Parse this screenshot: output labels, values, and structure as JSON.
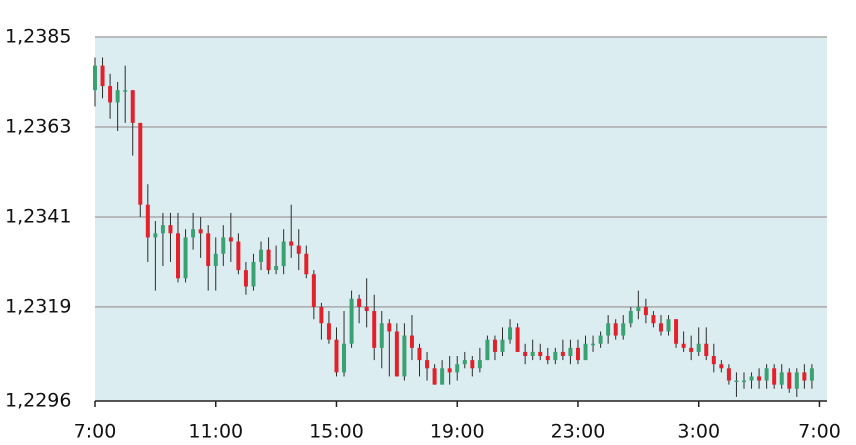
{
  "chart_data": {
    "type": "candlestick",
    "x": [
      7,
      7.25,
      7.5,
      7.75,
      8,
      8.25,
      8.5,
      8.75,
      9,
      9.25,
      9.5,
      9.75,
      10,
      10.25,
      10.5,
      10.75,
      11,
      11.25,
      11.5,
      11.75,
      12,
      12.25,
      12.5,
      12.75,
      13,
      13.25,
      13.5,
      13.75,
      14,
      14.25,
      14.5,
      14.75,
      15,
      15.25,
      15.5,
      15.75,
      16,
      16.25,
      16.5,
      16.75,
      17,
      17.25,
      17.5,
      17.75,
      18,
      18.25,
      18.5,
      18.75,
      19,
      19.25,
      19.5,
      19.75,
      20,
      20.25,
      20.5,
      20.75,
      21,
      21.25,
      21.5,
      21.75,
      22,
      22.25,
      22.5,
      22.75,
      23,
      23.25,
      23.5,
      23.75,
      24,
      24.25,
      24.5,
      24.75,
      25,
      25.25,
      25.5,
      25.75,
      26,
      26.25,
      26.5,
      26.75,
      27,
      27.25,
      27.5,
      27.75,
      28,
      28.25,
      28.5,
      28.75,
      29,
      29.25,
      29.5,
      29.75,
      30,
      30.25,
      30.5,
      30.75
    ],
    "open": [
      1.2372,
      1.2378,
      1.2373,
      1.2369,
      1.2372,
      1.2372,
      1.2364,
      1.2344,
      1.2336,
      1.2337,
      1.2339,
      1.2337,
      1.2326,
      1.2336,
      1.2338,
      1.2337,
      1.2329,
      1.2332,
      1.2336,
      1.2335,
      1.2328,
      1.2324,
      1.233,
      1.2333,
      1.2328,
      1.2329,
      1.2335,
      1.2334,
      1.2332,
      1.2327,
      1.2319,
      1.2315,
      1.2311,
      1.2303,
      1.231,
      1.2321,
      1.2319,
      1.2318,
      1.2309,
      1.2315,
      1.2313,
      1.2302,
      1.2312,
      1.2309,
      1.2306,
      1.2304,
      1.23,
      1.2304,
      1.2303,
      1.2305,
      1.2306,
      1.2304,
      1.2306,
      1.2311,
      1.2308,
      1.2311,
      1.2314,
      1.2308,
      1.2307,
      1.2308,
      1.2307,
      1.2306,
      1.2308,
      1.2307,
      1.2309,
      1.2306,
      1.231,
      1.231,
      1.2312,
      1.2315,
      1.2312,
      1.2315,
      1.2318,
      1.2319,
      1.2317,
      1.2315,
      1.2313,
      1.2316,
      1.231,
      1.2309,
      1.2308,
      1.231,
      1.2307,
      1.2305,
      1.2304,
      1.2301,
      1.2301,
      1.2301,
      1.2302,
      1.2301,
      1.2304,
      1.23,
      1.2303,
      1.2299,
      1.2303,
      1.2301
    ],
    "high": [
      1.238,
      1.238,
      1.2376,
      1.2374,
      1.2378,
      1.2372,
      1.2364,
      1.2349,
      1.234,
      1.2342,
      1.2342,
      1.2342,
      1.2338,
      1.2342,
      1.2341,
      1.2339,
      1.2336,
      1.2339,
      1.2342,
      1.2337,
      1.233,
      1.2332,
      1.2335,
      1.2336,
      1.2334,
      1.2338,
      1.2344,
      1.2338,
      1.2334,
      1.2328,
      1.232,
      1.2318,
      1.2314,
      1.2318,
      1.2323,
      1.2322,
      1.2326,
      1.2322,
      1.2318,
      1.2316,
      1.2315,
      1.2315,
      1.2317,
      1.231,
      1.2308,
      1.2305,
      1.2306,
      1.2307,
      1.2307,
      1.2308,
      1.2307,
      1.2309,
      1.2312,
      1.2312,
      1.2314,
      1.2316,
      1.2315,
      1.231,
      1.2311,
      1.231,
      1.2309,
      1.2309,
      1.2311,
      1.2311,
      1.2311,
      1.2312,
      1.2312,
      1.2313,
      1.2317,
      1.2316,
      1.2317,
      1.2319,
      1.2323,
      1.2321,
      1.2318,
      1.2317,
      1.2317,
      1.2316,
      1.2313,
      1.2312,
      1.2314,
      1.2314,
      1.231,
      1.2306,
      1.2305,
      1.2303,
      1.2303,
      1.2303,
      1.2304,
      1.2305,
      1.2305,
      1.2305,
      1.2304,
      1.2304,
      1.2305,
      1.2305
    ],
    "low": [
      1.2368,
      1.237,
      1.2365,
      1.2362,
      1.2364,
      1.2356,
      1.2341,
      1.233,
      1.2323,
      1.2329,
      1.233,
      1.2325,
      1.2325,
      1.2333,
      1.2331,
      1.2323,
      1.2323,
      1.2329,
      1.233,
      1.2327,
      1.2322,
      1.2323,
      1.2328,
      1.2327,
      1.2327,
      1.2327,
      1.2331,
      1.2328,
      1.2326,
      1.2316,
      1.2311,
      1.231,
      1.2302,
      1.2302,
      1.2309,
      1.2315,
      1.2314,
      1.2306,
      1.2304,
      1.2302,
      1.2302,
      1.2301,
      1.2306,
      1.2302,
      1.2301,
      1.23,
      1.23,
      1.23,
      1.2301,
      1.2304,
      1.2302,
      1.2303,
      1.2306,
      1.2306,
      1.2307,
      1.231,
      1.2308,
      1.2305,
      1.2306,
      1.2306,
      1.2305,
      1.2305,
      1.2306,
      1.2305,
      1.2305,
      1.2306,
      1.2308,
      1.2309,
      1.231,
      1.2311,
      1.2311,
      1.2314,
      1.2316,
      1.2315,
      1.2314,
      1.2312,
      1.2312,
      1.2309,
      1.2308,
      1.2306,
      1.2307,
      1.2306,
      1.2303,
      1.2303,
      1.23,
      1.2297,
      1.2299,
      1.2299,
      1.2299,
      1.2299,
      1.2299,
      1.2299,
      1.2298,
      1.2297,
      1.2299,
      1.2299
    ],
    "close": [
      1.2378,
      1.2373,
      1.2369,
      1.2372,
      1.2372,
      1.2364,
      1.2344,
      1.2336,
      1.2337,
      1.2339,
      1.2337,
      1.2326,
      1.2336,
      1.2338,
      1.2337,
      1.2329,
      1.2332,
      1.2336,
      1.2335,
      1.2328,
      1.2324,
      1.233,
      1.2333,
      1.2328,
      1.2329,
      1.2335,
      1.2334,
      1.2332,
      1.2327,
      1.2319,
      1.2315,
      1.2311,
      1.2303,
      1.231,
      1.2321,
      1.2319,
      1.2318,
      1.2309,
      1.2315,
      1.2313,
      1.2302,
      1.2312,
      1.2309,
      1.2306,
      1.2304,
      1.23,
      1.2304,
      1.2303,
      1.2305,
      1.2306,
      1.2304,
      1.2306,
      1.2311,
      1.2308,
      1.2311,
      1.2314,
      1.2308,
      1.2307,
      1.2308,
      1.2307,
      1.2306,
      1.2308,
      1.2307,
      1.2309,
      1.2306,
      1.231,
      1.231,
      1.2312,
      1.2315,
      1.2312,
      1.2315,
      1.2318,
      1.2319,
      1.2317,
      1.2315,
      1.2313,
      1.2316,
      1.231,
      1.2309,
      1.2308,
      1.231,
      1.2307,
      1.2305,
      1.2304,
      1.2301,
      1.2301,
      1.2301,
      1.2302,
      1.2301,
      1.2304,
      1.23,
      1.2303,
      1.2299,
      1.2303,
      1.2301,
      1.2304
    ],
    "up_color": "#3aa272",
    "down_color": "#e3212b",
    "grid": true,
    "xlim": [
      7,
      31.25
    ],
    "xticks": [
      {
        "value": 7,
        "label": "7:00"
      },
      {
        "value": 11,
        "label": "11:00"
      },
      {
        "value": 15,
        "label": "15:00"
      },
      {
        "value": 19,
        "label": "19:00"
      },
      {
        "value": 23,
        "label": "23:00"
      },
      {
        "value": 27,
        "label": "3:00"
      },
      {
        "value": 31,
        "label": "7:00"
      }
    ],
    "ylim": [
      1.2296,
      1.2385
    ],
    "yticks": [
      {
        "value": 1.2296,
        "label": "1,2296"
      },
      {
        "value": 1.2319,
        "label": "1,2319"
      },
      {
        "value": 1.2341,
        "label": "1,2341"
      },
      {
        "value": 1.2363,
        "label": "1,2363"
      },
      {
        "value": 1.2385,
        "label": "1,2385"
      }
    ]
  }
}
